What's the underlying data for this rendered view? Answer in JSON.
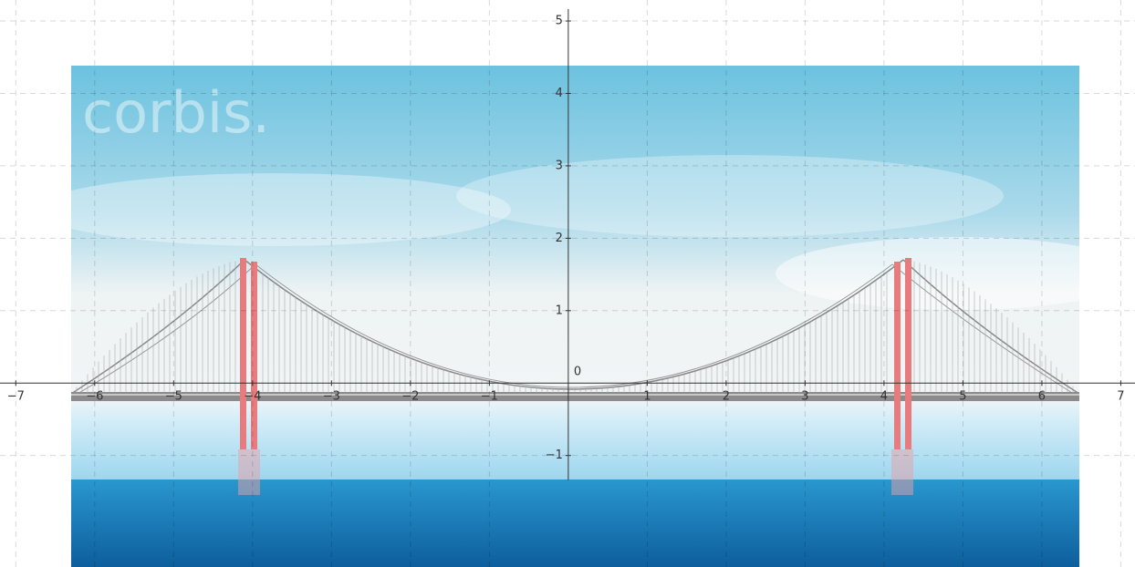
{
  "graph": {
    "watermark": "corbis.",
    "xlim": [
      -7.2,
      7.18
    ],
    "ylim": [
      -2.54,
      5.29
    ],
    "xticks": [
      {
        "value": -7,
        "label": "−7"
      },
      {
        "value": -6,
        "label": "−6"
      },
      {
        "value": -5,
        "label": "−5"
      },
      {
        "value": -4,
        "label": "−4"
      },
      {
        "value": -3,
        "label": "−3"
      },
      {
        "value": -2,
        "label": "−2"
      },
      {
        "value": -1,
        "label": "−1"
      },
      1,
      2,
      3,
      4,
      5,
      6,
      7
    ],
    "yticks": [
      5,
      4,
      3,
      2,
      1,
      0,
      {
        "value": -1,
        "label": "−1"
      }
    ],
    "grid": true
  }
}
